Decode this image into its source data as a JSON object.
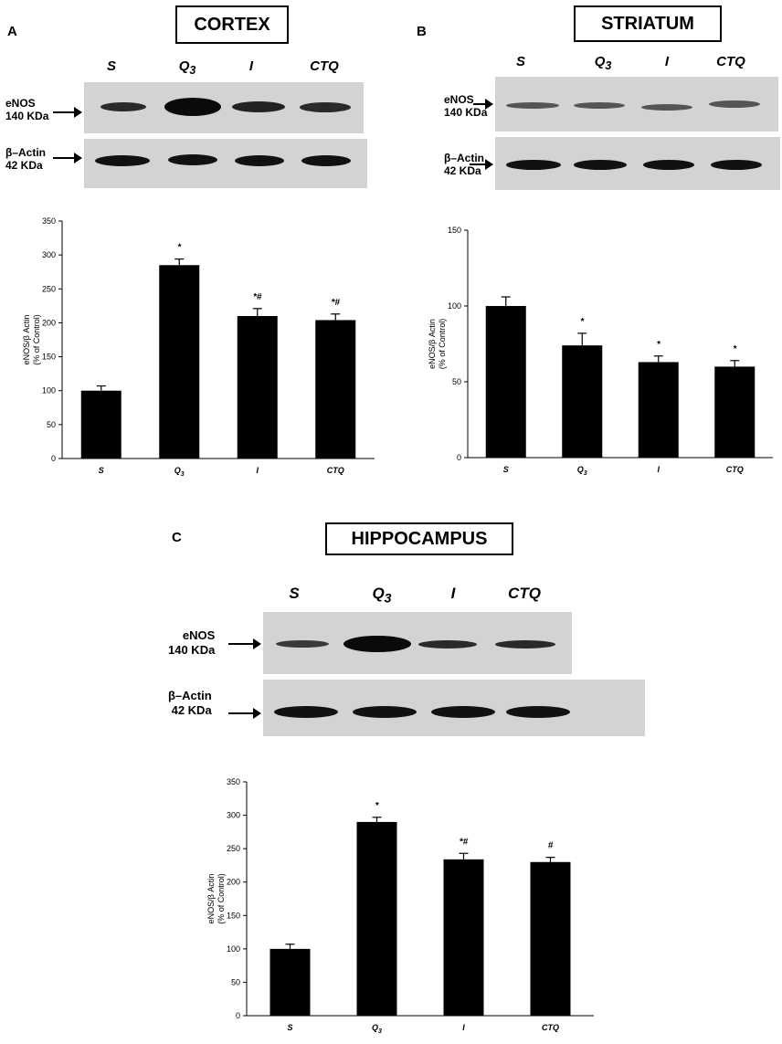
{
  "panels": {
    "a": {
      "letter": "A",
      "region": "CORTEX",
      "lanes": [
        "S",
        "Q3",
        "I",
        "CTQ"
      ],
      "protein_label": [
        "eNOS",
        "140 KDa"
      ],
      "control_label": [
        "β–Actin",
        "42 KDa"
      ]
    },
    "b": {
      "letter": "B",
      "region": "STRIATUM",
      "lanes": [
        "S",
        "Q3",
        "I",
        "CTQ"
      ],
      "protein_label": [
        "eNOS",
        "140 KDa"
      ],
      "control_label": [
        "β–Actin",
        "42 KDa"
      ]
    },
    "c": {
      "letter": "C",
      "region": "HIPPOCAMPUS",
      "lanes": [
        "S",
        "Q3",
        "I",
        "CTQ"
      ],
      "protein_label": [
        "eNOS",
        "140 KDa"
      ],
      "control_label": [
        "β–Actin",
        "42 KDa"
      ]
    }
  },
  "colors": {
    "bar": "#000000",
    "blot_bg": "#d3d3d3",
    "band": "#1a1a1a"
  },
  "chart_data": [
    {
      "type": "bar",
      "panel": "A",
      "categories": [
        "S",
        "Q3",
        "I",
        "CTQ"
      ],
      "values": [
        100,
        285,
        210,
        204
      ],
      "errors": [
        7,
        9,
        11,
        9
      ],
      "annotations": [
        "",
        "*",
        "*#",
        "*#"
      ],
      "ylabel": [
        "eNOS/β Actin",
        "(% of Control)"
      ],
      "ylim": [
        0,
        350
      ],
      "yticks": [
        0,
        50,
        100,
        150,
        200,
        250,
        300,
        350
      ]
    },
    {
      "type": "bar",
      "panel": "B",
      "categories": [
        "S",
        "Q3",
        "I",
        "CTQ"
      ],
      "values": [
        100,
        74,
        63,
        60
      ],
      "errors": [
        6,
        8,
        4,
        4
      ],
      "annotations": [
        "",
        "*",
        "*",
        "*"
      ],
      "ylabel": [
        "eNOS/β Actin",
        "(% of Control)"
      ],
      "ylim": [
        0,
        150
      ],
      "yticks": [
        0,
        50,
        100,
        150
      ]
    },
    {
      "type": "bar",
      "panel": "C",
      "categories": [
        "S",
        "Q3",
        "I",
        "CTQ"
      ],
      "values": [
        100,
        290,
        234,
        230
      ],
      "errors": [
        7,
        7,
        9,
        7
      ],
      "annotations": [
        "",
        "*",
        "*#",
        "#"
      ],
      "ylabel": [
        "eNOS/β Actin",
        "(% of Control)"
      ],
      "ylim": [
        0,
        350
      ],
      "yticks": [
        0,
        50,
        100,
        150,
        200,
        250,
        300,
        350
      ]
    }
  ]
}
